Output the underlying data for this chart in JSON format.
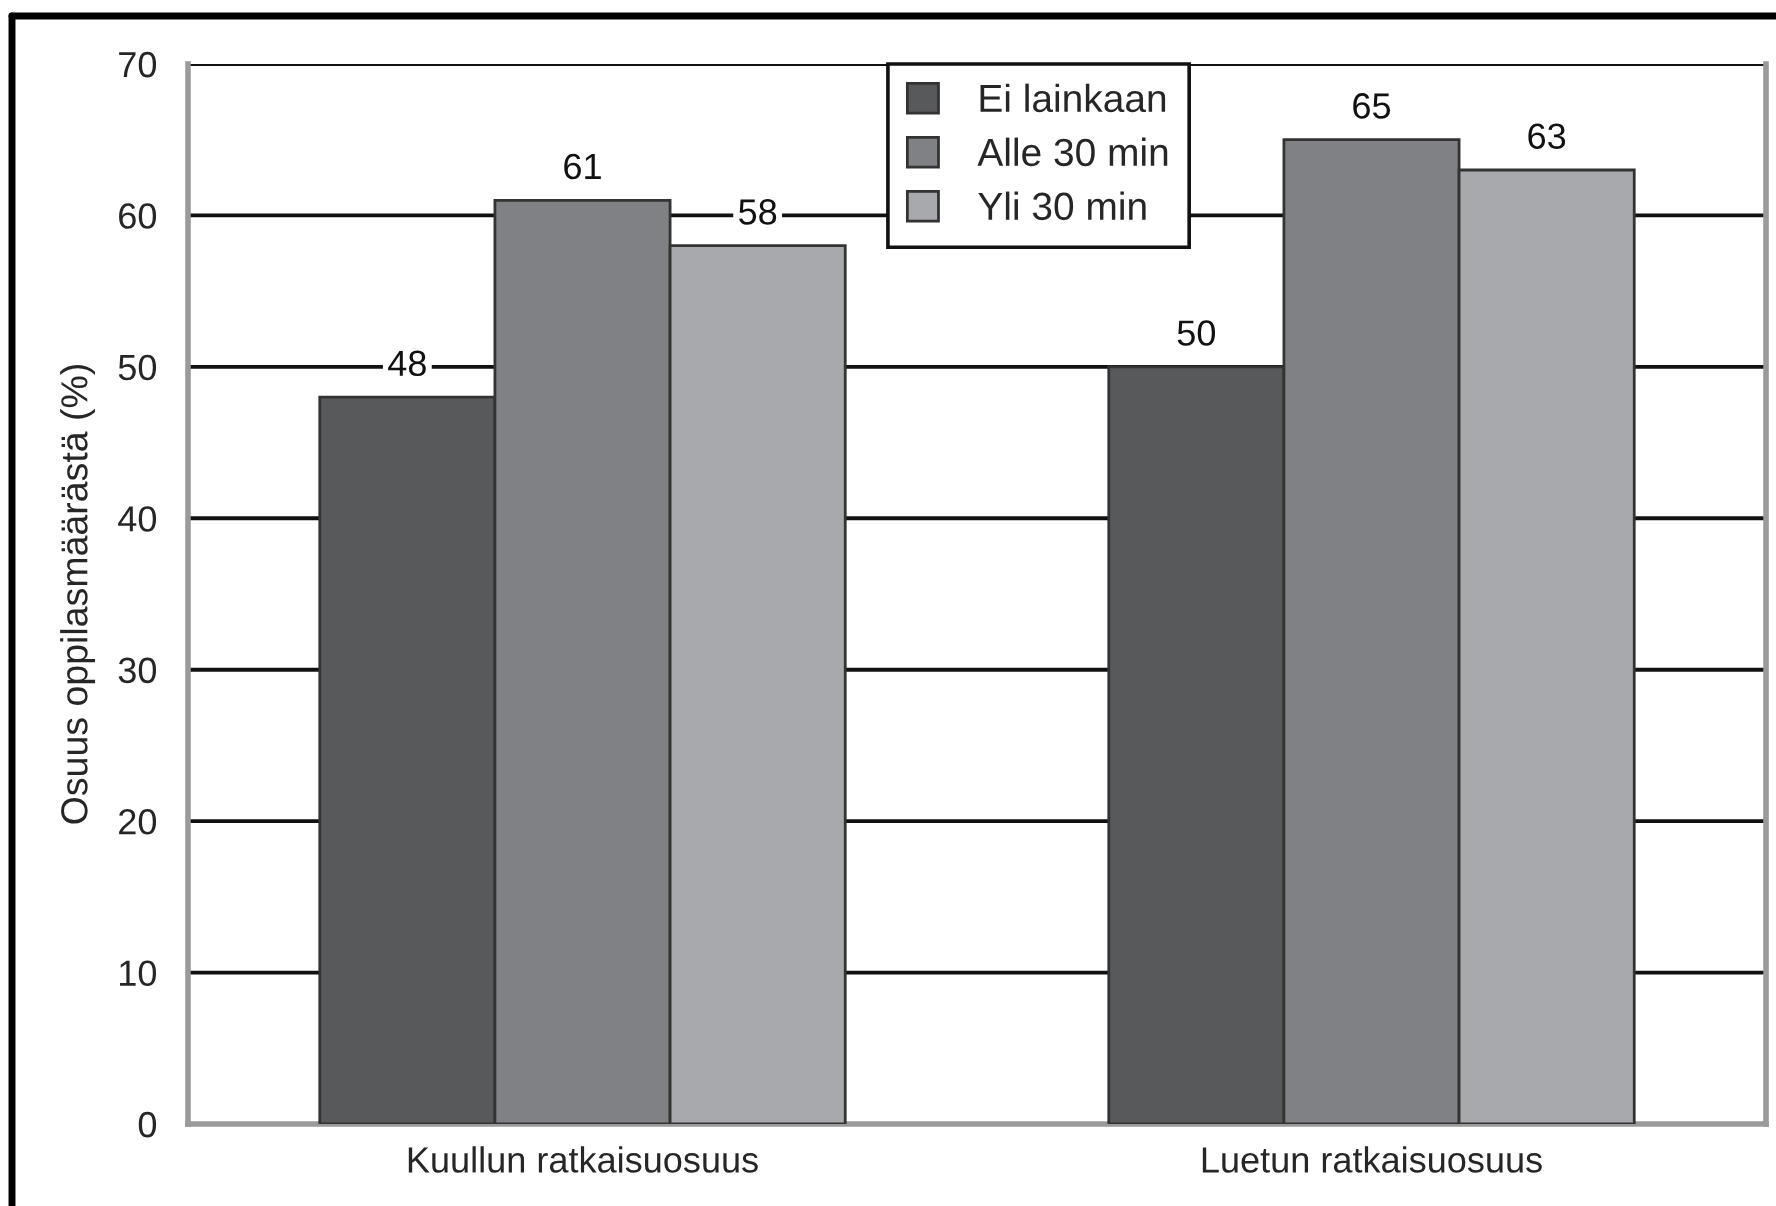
{
  "chart_data": {
    "type": "bar",
    "ylabel": "Osuus oppilasmäärästä (%)",
    "categories": [
      "Kuullun ratkaisuosuus",
      "Luetun ratkaisuosuus"
    ],
    "series": [
      {
        "name": "Ei lainkaan",
        "color": "#58595b",
        "values": [
          48,
          50
        ]
      },
      {
        "name": "Alle 30 min",
        "color": "#808184",
        "values": [
          61,
          65
        ]
      },
      {
        "name": "Yli 30 min",
        "color": "#a7a9ac",
        "values": [
          58,
          63
        ]
      }
    ],
    "ylim": [
      0,
      70
    ],
    "yticks": [
      0,
      10,
      20,
      30,
      40,
      50,
      60,
      70
    ],
    "grid": "y",
    "legend": "top",
    "data_labels": true
  }
}
